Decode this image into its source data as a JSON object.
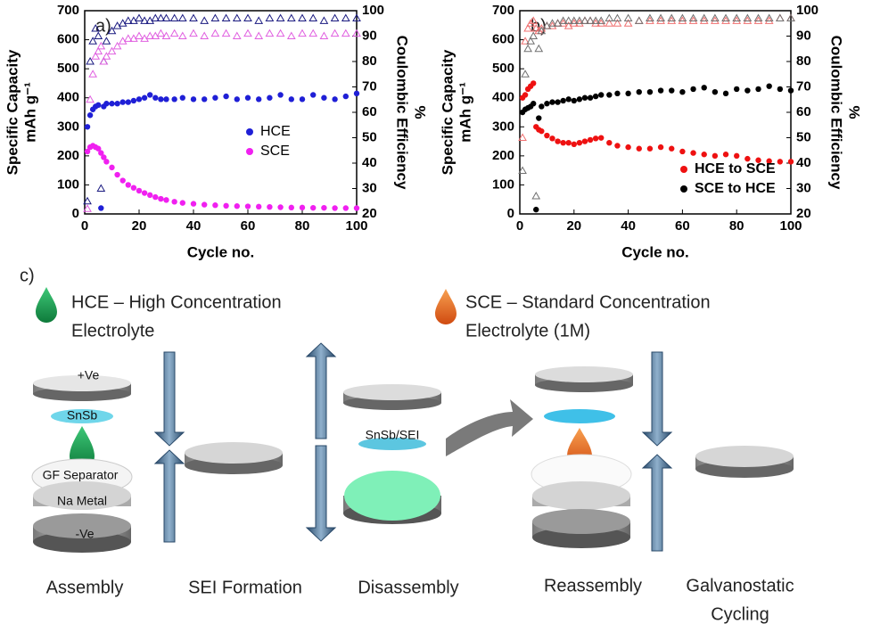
{
  "chart_data": [
    {
      "type": "scatter",
      "panel_label": "a)",
      "x_label": "Cycle no.",
      "y_label": [
        "Specific Capacity",
        "mAh g⁻¹"
      ],
      "y2_label": [
        "Coulombic Efficiency",
        "%"
      ],
      "xlim": [
        0,
        100
      ],
      "xticks": [
        0,
        20,
        40,
        60,
        80,
        100
      ],
      "ylim": [
        0,
        700
      ],
      "yticks": [
        0,
        100,
        200,
        300,
        400,
        500,
        600,
        700
      ],
      "y2lim": [
        20,
        100
      ],
      "y2ticks": [
        20,
        30,
        40,
        50,
        60,
        70,
        80,
        90,
        100
      ],
      "legend": "center right",
      "x": [
        1,
        2,
        3,
        4,
        5,
        6,
        7,
        8,
        10,
        12,
        14,
        16,
        18,
        20,
        22,
        24,
        26,
        28,
        30,
        33,
        36,
        40,
        44,
        48,
        52,
        56,
        60,
        64,
        68,
        72,
        76,
        80,
        84,
        88,
        92,
        96,
        100
      ],
      "series": [
        {
          "name": "HCE",
          "color": "#1f1fd6",
          "marker": "dot",
          "values": [
            300,
            340,
            360,
            370,
            375,
            20,
            370,
            380,
            380,
            380,
            385,
            385,
            390,
            395,
            400,
            410,
            400,
            395,
            395,
            395,
            400,
            395,
            395,
            400,
            405,
            395,
            400,
            395,
            400,
            410,
            395,
            395,
            410,
            400,
            395,
            405,
            415
          ]
        },
        {
          "name": "SCE",
          "color": "#f020f0",
          "marker": "dot",
          "values": [
            215,
            230,
            235,
            230,
            225,
            210,
            195,
            180,
            160,
            135,
            115,
            100,
            90,
            80,
            72,
            65,
            58,
            52,
            48,
            42,
            38,
            35,
            32,
            30,
            28,
            27,
            26,
            25,
            24,
            23,
            22,
            22,
            21,
            21,
            20,
            20,
            20
          ]
        },
        {
          "color": "#1a1a80",
          "marker": "triangle",
          "axis": "y2",
          "values": [
            25,
            80,
            88,
            93,
            90,
            30,
            80,
            88,
            92,
            94,
            95,
            96,
            96,
            97,
            96,
            96,
            97,
            97,
            97,
            97,
            97,
            97,
            96,
            97,
            97,
            97,
            97,
            96,
            97,
            97,
            97,
            97,
            97,
            96,
            97,
            97,
            97
          ]
        },
        {
          "color": "#e060e0",
          "marker": "triangle",
          "axis": "y2",
          "values": [
            22,
            65,
            75,
            82,
            84,
            86,
            80,
            82,
            84,
            86,
            88,
            89,
            89,
            90,
            89,
            90,
            90,
            91,
            90,
            91,
            90,
            91,
            90,
            91,
            91,
            90,
            91,
            90,
            91,
            91,
            90,
            91,
            91,
            90,
            91,
            91,
            91
          ]
        }
      ]
    },
    {
      "type": "scatter",
      "panel_label": "b)",
      "x_label": "Cycle no.",
      "y_label": [
        "Specific Capacity",
        "mAh g⁻¹"
      ],
      "y2_label": [
        "Coulombic Efficiency",
        "%"
      ],
      "xlim": [
        0,
        100
      ],
      "xticks": [
        0,
        20,
        40,
        60,
        80,
        100
      ],
      "ylim": [
        0,
        700
      ],
      "yticks": [
        0,
        100,
        200,
        300,
        400,
        500,
        600,
        700
      ],
      "y2lim": [
        20,
        100
      ],
      "y2ticks": [
        20,
        30,
        40,
        50,
        60,
        70,
        80,
        90,
        100
      ],
      "legend": "lower right",
      "x": [
        1,
        2,
        3,
        4,
        5,
        6,
        7,
        8,
        10,
        12,
        14,
        16,
        18,
        20,
        22,
        24,
        26,
        28,
        30,
        33,
        36,
        40,
        44,
        48,
        52,
        56,
        60,
        64,
        68,
        72,
        76,
        80,
        84,
        88,
        92,
        96,
        100
      ],
      "series": [
        {
          "name": "HCE to SCE",
          "color": "#ee1111",
          "marker": "dot",
          "values": [
            400,
            410,
            430,
            440,
            450,
            300,
            290,
            285,
            270,
            260,
            250,
            245,
            245,
            240,
            245,
            250,
            255,
            260,
            262,
            245,
            235,
            230,
            225,
            225,
            230,
            225,
            215,
            210,
            205,
            200,
            205,
            200,
            190,
            185,
            182,
            180,
            180
          ]
        },
        {
          "name": "SCE to HCE",
          "color": "#000000",
          "marker": "dot",
          "values": [
            350,
            360,
            365,
            370,
            380,
            15,
            330,
            370,
            380,
            385,
            385,
            390,
            395,
            390,
            395,
            400,
            400,
            405,
            410,
            410,
            415,
            415,
            420,
            420,
            425,
            425,
            420,
            430,
            435,
            420,
            415,
            430,
            425,
            430,
            440,
            430,
            425
          ]
        },
        {
          "color": "#f07070",
          "marker": "triangle",
          "axis": "y2",
          "values": [
            50,
            88,
            93,
            95,
            96,
            93,
            92,
            93,
            94,
            94,
            95,
            95,
            94,
            95,
            95,
            96,
            96,
            95,
            95,
            95,
            95,
            95,
            96,
            96,
            96,
            96,
            96,
            96,
            96,
            96,
            96,
            96,
            96,
            96,
            96,
            97,
            97
          ]
        },
        {
          "color": "#707070",
          "marker": "triangle",
          "axis": "y2",
          "values": [
            37,
            75,
            85,
            88,
            90,
            27,
            85,
            92,
            94,
            95,
            95,
            96,
            96,
            96,
            96,
            96,
            96,
            96,
            96,
            97,
            97,
            97,
            96,
            97,
            97,
            97,
            97,
            97,
            97,
            97,
            97,
            97,
            97,
            97,
            97,
            97,
            97
          ]
        }
      ]
    }
  ],
  "diagram": {
    "panel_label": "c)",
    "hce": [
      "HCE – High Concentration",
      "Electrolyte"
    ],
    "sce": [
      "SCE – Standard Concentration",
      "Electrolyte (1M)"
    ],
    "layers": {
      "positive": "+Ve",
      "active": "SnSb",
      "separator": "GF Separator",
      "metal": "Na Metal",
      "negative": "-Ve"
    },
    "sei": "SnSb/SEI",
    "steps": [
      [
        "Assembly"
      ],
      [
        "SEI Formation"
      ],
      [
        "Disassembly"
      ],
      [
        "Reassembly"
      ],
      [
        "Galvanostatic",
        "Cycling"
      ]
    ]
  }
}
